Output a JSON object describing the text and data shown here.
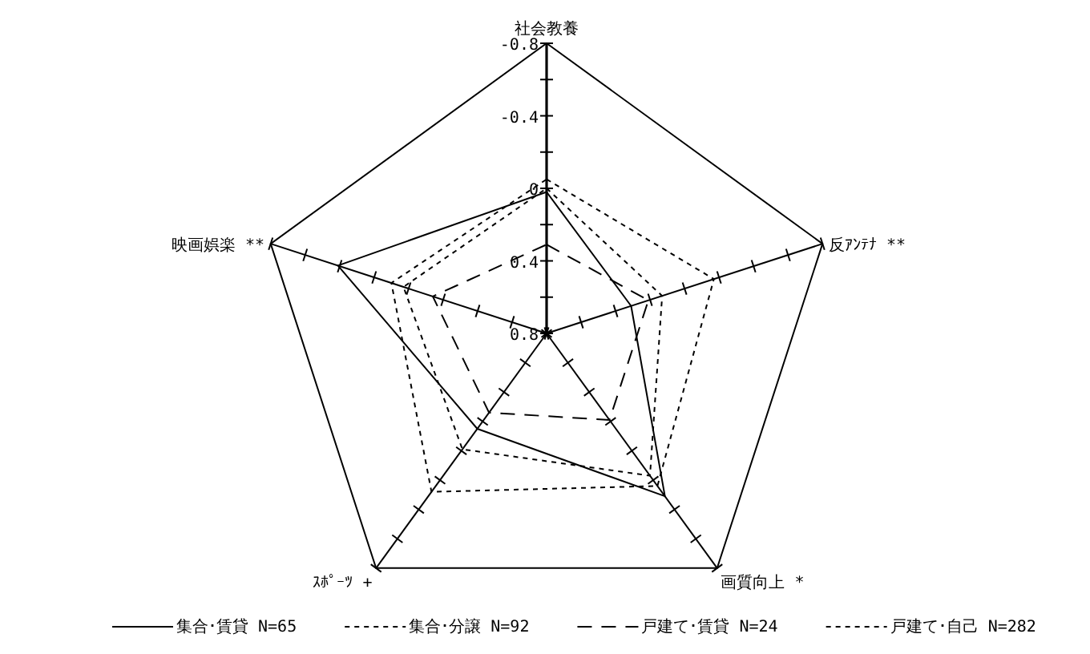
{
  "chart_data": {
    "type": "radar",
    "categories": [
      "社会教養",
      "反ｱﾝﾃﾅ **",
      "画質向上 *",
      "ｽﾎﾟｰﾂ +",
      "映画娯楽 **"
    ],
    "ylim": [
      0.8,
      -0.8
    ],
    "yticks": [
      0.8,
      0.4,
      0,
      -0.4,
      -0.8
    ],
    "legend": "bottom",
    "series": [
      {
        "name": "集合･賃貸 N=65",
        "color": "#000000",
        "line_style": "solid",
        "values": [
          0.02,
          0.31,
          -0.31,
          0.15,
          -0.41
        ]
      },
      {
        "name": "集合･分譲 N=92",
        "color": "#000000",
        "line_style": "dotted",
        "values": [
          -0.05,
          -0.17,
          -0.24,
          -0.28,
          -0.1
        ]
      },
      {
        "name": "戸建て･賃貸 N=24",
        "color": "#000000",
        "line_style": "dashed",
        "values": [
          0.31,
          0.21,
          0.21,
          0.26,
          0.14
        ]
      },
      {
        "name": "戸建て･自己 N=282",
        "color": "#000000",
        "line_style": "dotted",
        "values": [
          0.0,
          0.13,
          -0.17,
          0.01,
          -0.03
        ]
      }
    ]
  }
}
